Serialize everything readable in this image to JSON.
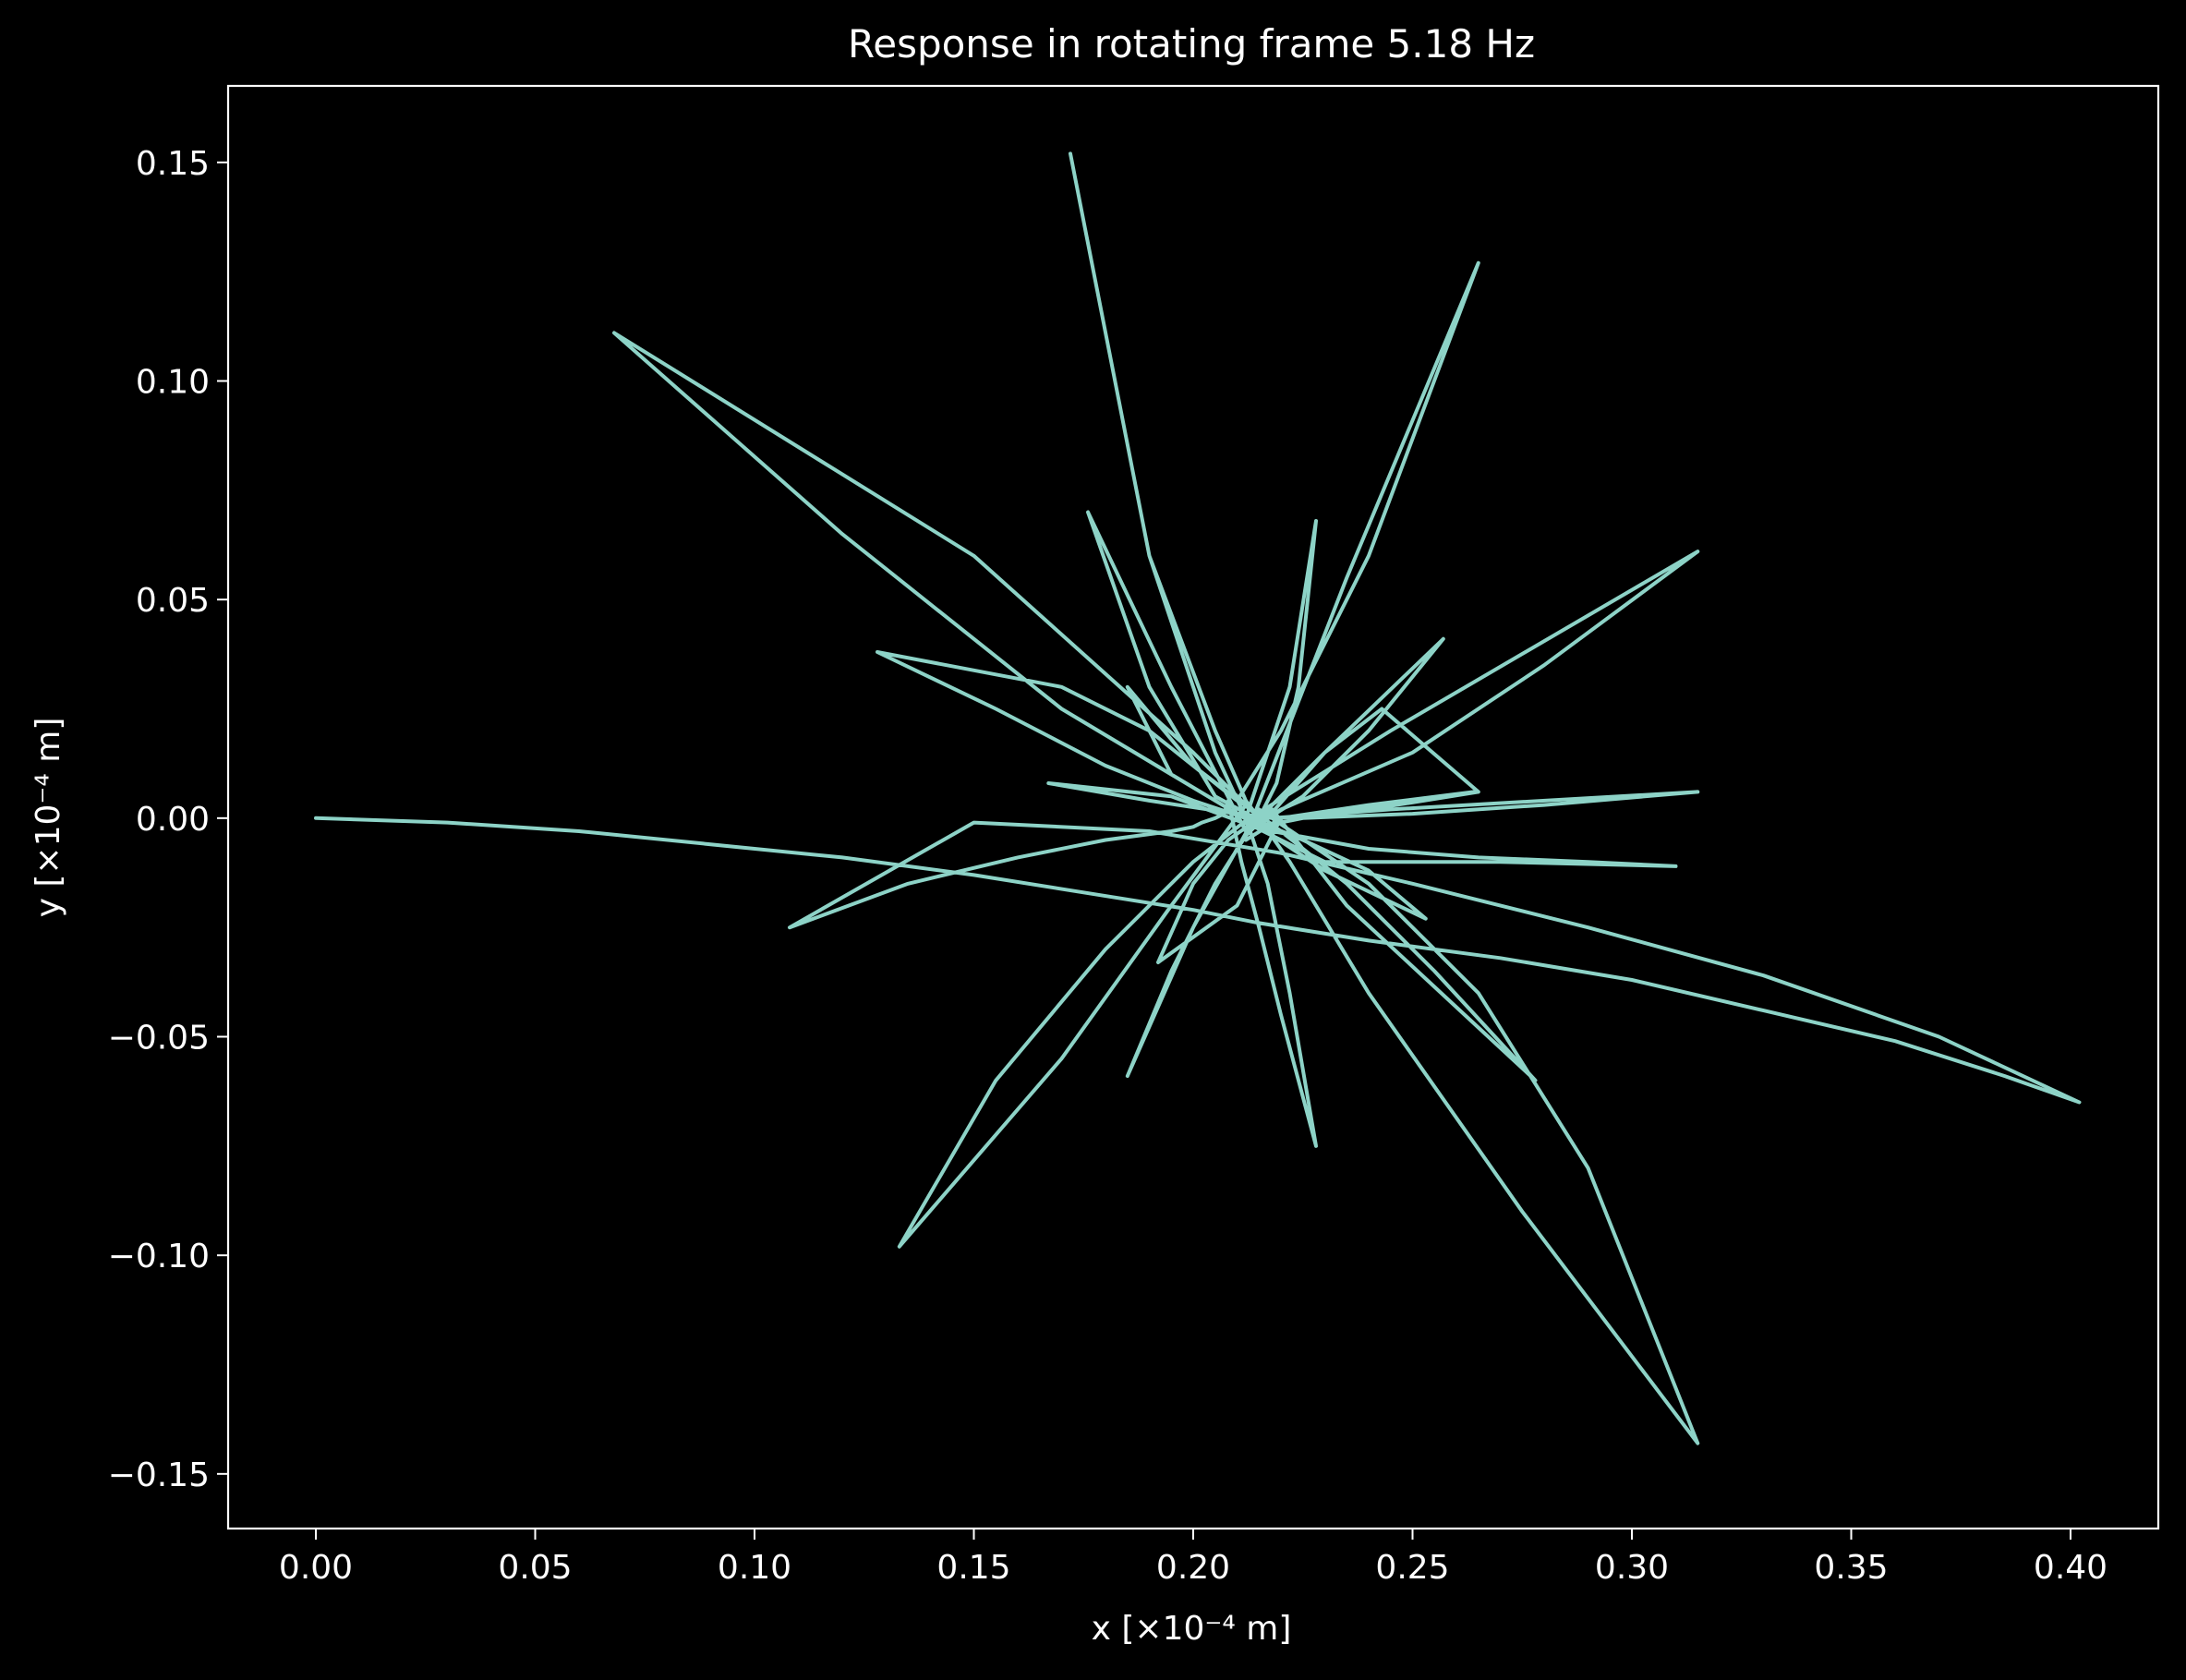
{
  "chart_data": {
    "type": "line",
    "title": "Response in rotating frame 5.18 Hz",
    "xlabel": "x [×10⁻⁴ m]",
    "ylabel": "y [×10⁻⁴ m]",
    "xlim": [
      -0.02,
      0.42
    ],
    "ylim": [
      -0.1625,
      0.1675
    ],
    "xticks": [
      0.0,
      0.05,
      0.1,
      0.15,
      0.2,
      0.25,
      0.3,
      0.35,
      0.4
    ],
    "xtick_labels": [
      "0.00",
      "0.05",
      "0.10",
      "0.15",
      "0.20",
      "0.25",
      "0.30",
      "0.35",
      "0.40"
    ],
    "yticks": [
      -0.15,
      -0.1,
      -0.05,
      0.0,
      0.05,
      0.1,
      0.15
    ],
    "ytick_labels": [
      "−0.15",
      "−0.10",
      "−0.05",
      "0.00",
      "0.05",
      "0.10",
      "0.15"
    ],
    "grid": false,
    "legend": null,
    "colors": {
      "background": "#000000",
      "axes": "#ffffff",
      "text": "#ffffff",
      "line": "#8dd3c7"
    },
    "series": [
      {
        "x": [
          0.0,
          0.03,
          0.06,
          0.09,
          0.12,
          0.15,
          0.175,
          0.2,
          0.215,
          0.24,
          0.27,
          0.3,
          0.33,
          0.36,
          0.385,
          0.402,
          0.37,
          0.33,
          0.29,
          0.25,
          0.22,
          0.19,
          0.15,
          0.108,
          0.135,
          0.16,
          0.18,
          0.195,
          0.2,
          0.202,
          0.205,
          0.207,
          0.208,
          0.211,
          0.215,
          0.22,
          0.228,
          0.222,
          0.217,
          0.212,
          0.205,
          0.19,
          0.172,
          0.19,
          0.205,
          0.212,
          0.215,
          0.222,
          0.24,
          0.275,
          0.315,
          0.29,
          0.265,
          0.24,
          0.215,
          0.2,
          0.185,
          0.195,
          0.205,
          0.212,
          0.218,
          0.235,
          0.278,
          0.255,
          0.235,
          0.22,
          0.212,
          0.195,
          0.17,
          0.133,
          0.155,
          0.18,
          0.2,
          0.214,
          0.235,
          0.265,
          0.24,
          0.22,
          0.21,
          0.19,
          0.17,
          0.128,
          0.155,
          0.18,
          0.2,
          0.212,
          0.222,
          0.228,
          0.224,
          0.219,
          0.214,
          0.23,
          0.27,
          0.31,
          0.29,
          0.265,
          0.24,
          0.218,
          0.2,
          0.15,
          0.068,
          0.12,
          0.17,
          0.205,
          0.215,
          0.23,
          0.253,
          0.24,
          0.225,
          0.213,
          0.245,
          0.315,
          0.28,
          0.25,
          0.22,
          0.212,
          0.195,
          0.176,
          0.19,
          0.205,
          0.216,
          0.23,
          0.257,
          0.24,
          0.225,
          0.214,
          0.195,
          0.167,
          0.19,
          0.21,
          0.218,
          0.245,
          0.315,
          0.28,
          0.25,
          0.225,
          0.215,
          0.195,
          0.185,
          0.2,
          0.213,
          0.22,
          0.24,
          0.264,
          0.25,
          0.235,
          0.22,
          0.21,
          0.192,
          0.2,
          0.208,
          0.215,
          0.23,
          0.243,
          0.265,
          0.24,
          0.22,
          0.212
        ],
        "y": [
          0.0,
          -0.001,
          -0.003,
          -0.006,
          -0.009,
          -0.013,
          -0.017,
          -0.021,
          -0.024,
          -0.028,
          -0.032,
          -0.037,
          -0.044,
          -0.051,
          -0.059,
          -0.065,
          -0.05,
          -0.036,
          -0.025,
          -0.015,
          -0.008,
          -0.003,
          -0.001,
          -0.025,
          -0.015,
          -0.009,
          -0.005,
          -0.003,
          -0.002,
          -0.001,
          0.0,
          0.001,
          0.004,
          -0.01,
          -0.025,
          -0.045,
          -0.075,
          -0.04,
          -0.015,
          0.0,
          0.015,
          0.06,
          0.152,
          0.06,
          0.02,
          0.004,
          0.0,
          -0.01,
          -0.04,
          -0.09,
          -0.143,
          -0.08,
          -0.04,
          -0.015,
          0.002,
          -0.025,
          -0.059,
          -0.035,
          -0.015,
          -0.004,
          0.002,
          -0.02,
          -0.06,
          -0.035,
          -0.015,
          -0.003,
          0.003,
          -0.02,
          -0.055,
          -0.098,
          -0.06,
          -0.03,
          -0.01,
          0.001,
          0.055,
          0.127,
          0.06,
          0.02,
          0.004,
          0.02,
          0.03,
          0.038,
          0.025,
          0.012,
          0.004,
          0.0,
          0.03,
          0.068,
          0.03,
          0.008,
          -0.002,
          -0.01,
          -0.01,
          -0.011,
          -0.01,
          -0.009,
          -0.007,
          -0.003,
          0.015,
          0.06,
          0.111,
          0.065,
          0.025,
          0.004,
          -0.002,
          -0.012,
          -0.023,
          -0.012,
          -0.005,
          0.0,
          0.02,
          0.061,
          0.035,
          0.015,
          0.002,
          -0.003,
          0.03,
          0.07,
          0.03,
          0.005,
          -0.001,
          0.015,
          0.041,
          0.02,
          0.005,
          -0.002,
          0.005,
          0.008,
          0.004,
          0.001,
          0.0,
          0.002,
          0.006,
          0.003,
          0.001,
          0.0,
          -0.002,
          0.01,
          0.03,
          0.012,
          0.002,
          0.0,
          0.003,
          0.006,
          0.004,
          0.002,
          0.0,
          -0.02,
          -0.033,
          -0.015,
          -0.005,
          0.0,
          0.015,
          0.025,
          0.006,
          0.002,
          0.0,
          -0.005
        ]
      }
    ]
  }
}
